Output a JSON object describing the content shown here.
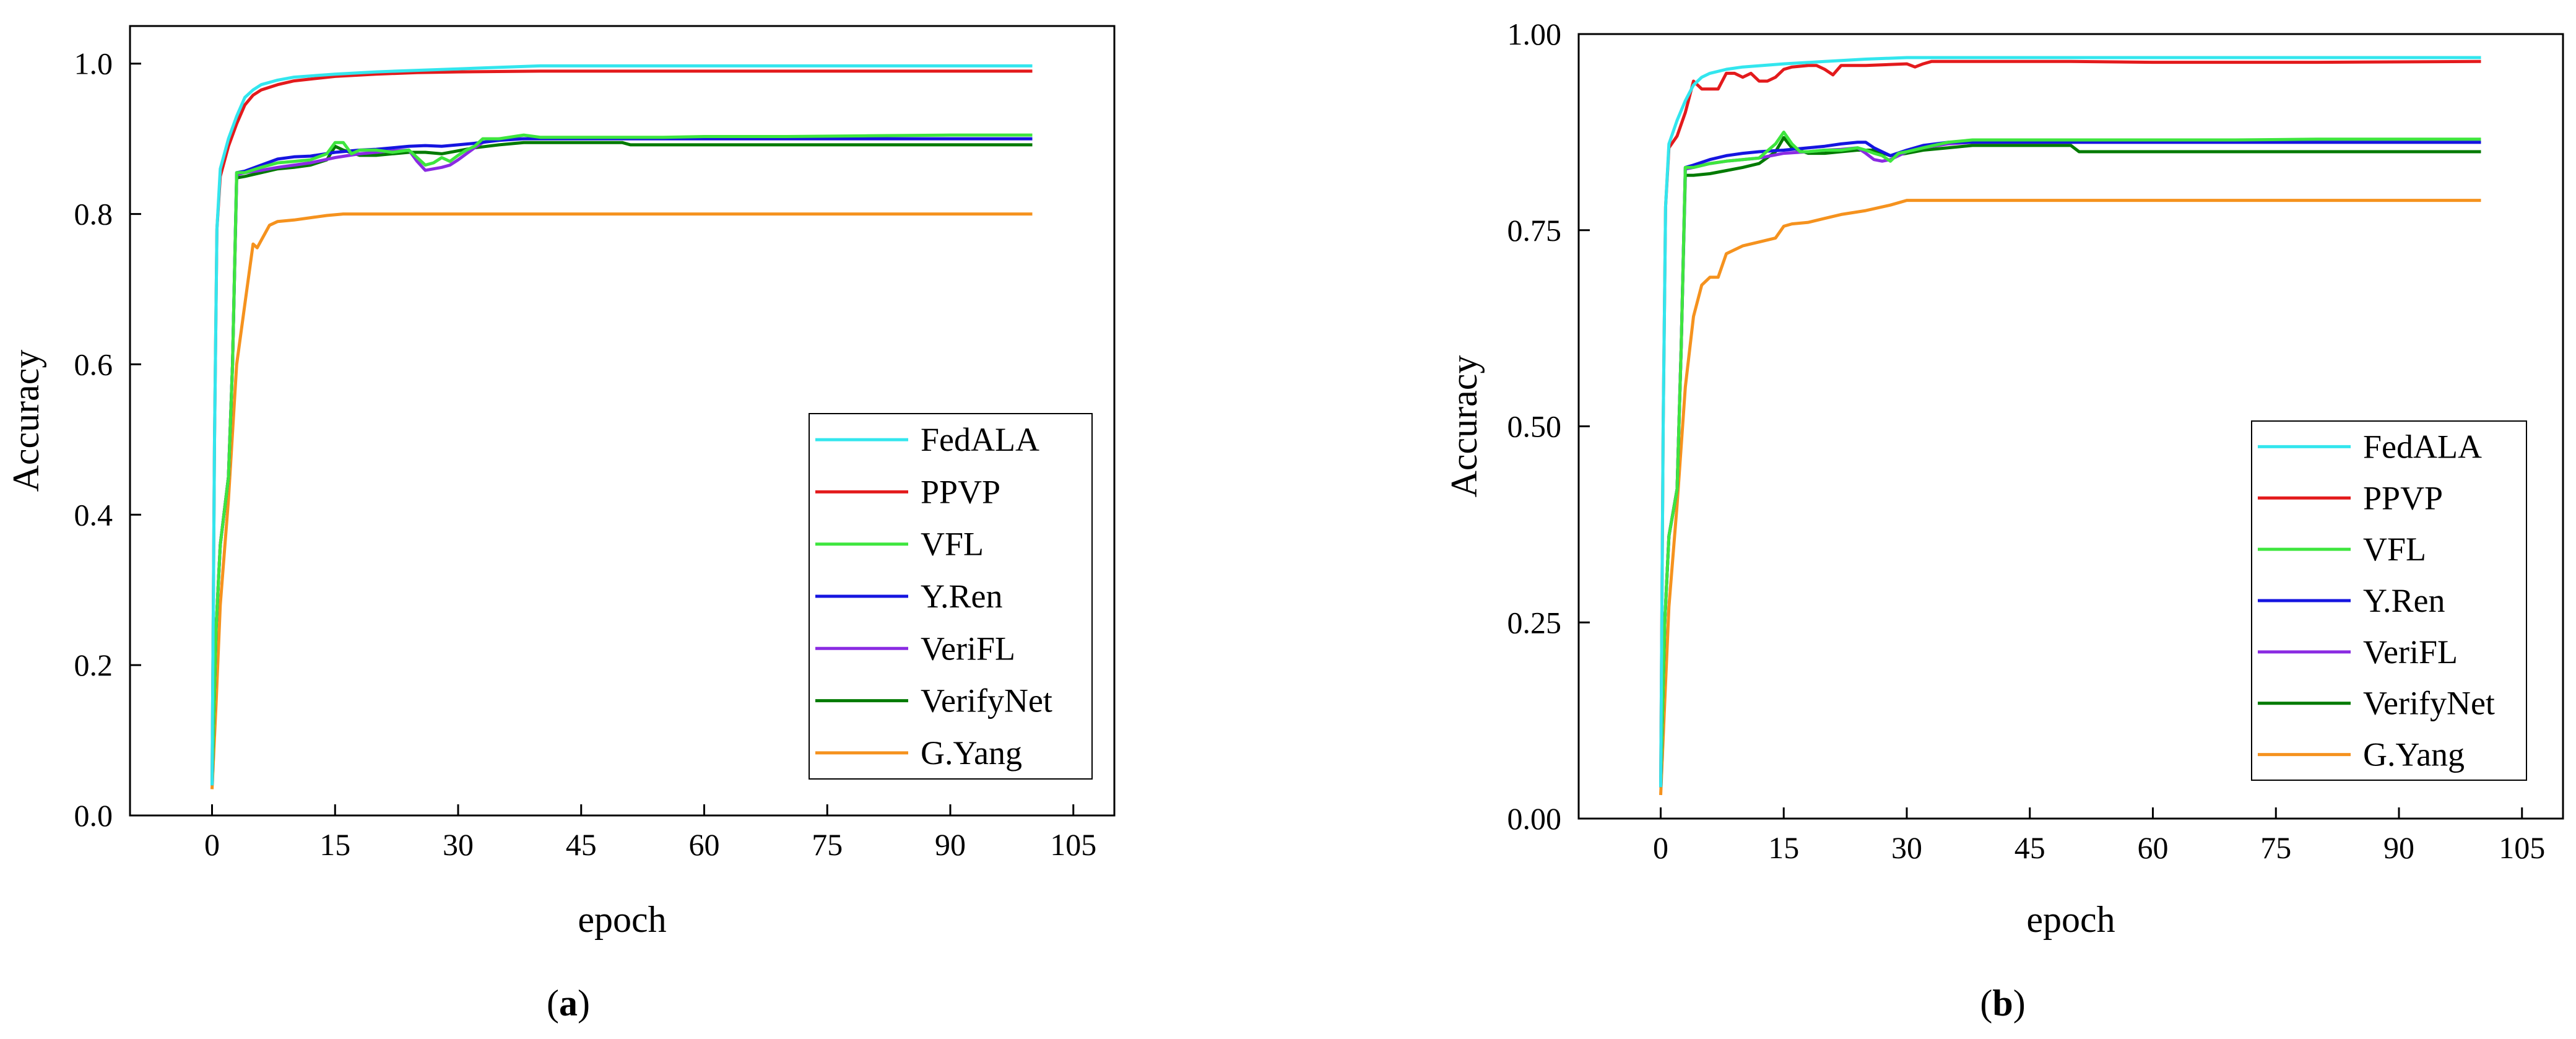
{
  "colors": {
    "FedALA": "#33e6ee",
    "PPVP": "#e31a1c",
    "VFL": "#3ee63e",
    "Y.Ren": "#1515e0",
    "VeriFL": "#8a2be2",
    "VerifyNet": "#007a00",
    "G.Yang": "#f5921e"
  },
  "chart_data": [
    {
      "type": "line",
      "panel_label": "a",
      "title": "",
      "xlabel": "epoch",
      "ylabel": "Accuracy",
      "xlim": [
        -10,
        110
      ],
      "ylim": [
        0,
        1.05
      ],
      "xticks": [
        0,
        15,
        30,
        45,
        60,
        75,
        90,
        105
      ],
      "yticks": [
        0.0,
        0.2,
        0.4,
        0.6,
        0.8,
        1.0
      ],
      "ytick_labels": [
        "0.0",
        "0.2",
        "0.4",
        "0.6",
        "0.8",
        "1.0"
      ],
      "legend": "bottom-right",
      "series": [
        {
          "name": "FedALA",
          "x": [
            0,
            0.3,
            0.6,
            1,
            2,
            3,
            4,
            5,
            6,
            8,
            10,
            15,
            20,
            25,
            30,
            35,
            40,
            60,
            80,
            100
          ],
          "y": [
            0.04,
            0.5,
            0.78,
            0.86,
            0.9,
            0.93,
            0.955,
            0.965,
            0.972,
            0.978,
            0.982,
            0.986,
            0.989,
            0.991,
            0.993,
            0.995,
            0.997,
            0.997,
            0.997,
            0.997
          ]
        },
        {
          "name": "PPVP",
          "x": [
            0,
            0.3,
            0.6,
            1,
            2,
            3,
            4,
            5,
            6,
            8,
            10,
            15,
            20,
            25,
            30,
            40,
            60,
            80,
            100
          ],
          "y": [
            0.04,
            0.5,
            0.78,
            0.85,
            0.89,
            0.92,
            0.945,
            0.958,
            0.965,
            0.972,
            0.977,
            0.983,
            0.986,
            0.988,
            0.989,
            0.99,
            0.99,
            0.99,
            0.99
          ]
        },
        {
          "name": "VFL",
          "x": [
            0,
            0.5,
            1,
            2,
            2.5,
            3,
            4,
            6,
            8,
            10,
            12,
            14,
            15,
            16,
            17,
            18,
            20,
            22,
            24,
            25,
            26,
            27,
            28,
            29,
            30,
            31,
            32,
            33,
            35,
            38,
            40,
            45,
            50,
            55,
            60,
            70,
            80,
            90,
            100
          ],
          "y": [
            0.04,
            0.25,
            0.36,
            0.45,
            0.6,
            0.855,
            0.855,
            0.862,
            0.868,
            0.87,
            0.872,
            0.88,
            0.895,
            0.895,
            0.88,
            0.885,
            0.885,
            0.882,
            0.885,
            0.875,
            0.865,
            0.868,
            0.875,
            0.87,
            0.878,
            0.885,
            0.89,
            0.9,
            0.9,
            0.905,
            0.902,
            0.902,
            0.902,
            0.902,
            0.903,
            0.903,
            0.904,
            0.905,
            0.905
          ]
        },
        {
          "name": "Y.Ren",
          "x": [
            0,
            0.5,
            1,
            2,
            2.5,
            3,
            4,
            6,
            8,
            10,
            12,
            15,
            18,
            20,
            22,
            24,
            26,
            28,
            30,
            32,
            35,
            38,
            40,
            50,
            60,
            70,
            80,
            90,
            100
          ],
          "y": [
            0.04,
            0.25,
            0.36,
            0.45,
            0.6,
            0.855,
            0.857,
            0.865,
            0.873,
            0.876,
            0.877,
            0.882,
            0.885,
            0.886,
            0.888,
            0.89,
            0.891,
            0.89,
            0.892,
            0.894,
            0.898,
            0.9,
            0.9,
            0.9,
            0.9,
            0.9,
            0.9,
            0.9,
            0.9
          ]
        },
        {
          "name": "VeriFL",
          "x": [
            0,
            0.5,
            1,
            2,
            2.5,
            3,
            4,
            6,
            8,
            10,
            12,
            15,
            18,
            20,
            22,
            24,
            25,
            26,
            27,
            28,
            29,
            30,
            31,
            32,
            33,
            35,
            38,
            40,
            50,
            60,
            70,
            80,
            90,
            100
          ],
          "y": [
            0.04,
            0.25,
            0.36,
            0.45,
            0.6,
            0.852,
            0.855,
            0.858,
            0.862,
            0.865,
            0.868,
            0.875,
            0.88,
            0.882,
            0.884,
            0.885,
            0.87,
            0.858,
            0.86,
            0.862,
            0.865,
            0.872,
            0.88,
            0.888,
            0.895,
            0.9,
            0.9,
            0.9,
            0.9,
            0.9,
            0.9,
            0.9,
            0.9,
            0.9
          ]
        },
        {
          "name": "VerifyNet",
          "x": [
            0,
            0.5,
            1,
            2,
            2.5,
            3,
            4,
            6,
            8,
            10,
            12,
            14,
            15,
            16,
            18,
            20,
            22,
            24,
            26,
            28,
            30,
            32,
            35,
            38,
            40,
            45,
            50,
            51,
            60,
            70,
            80,
            90,
            100
          ],
          "y": [
            0.04,
            0.25,
            0.36,
            0.45,
            0.6,
            0.848,
            0.85,
            0.855,
            0.86,
            0.862,
            0.865,
            0.872,
            0.89,
            0.885,
            0.878,
            0.878,
            0.88,
            0.882,
            0.882,
            0.88,
            0.884,
            0.888,
            0.892,
            0.895,
            0.895,
            0.895,
            0.895,
            0.892,
            0.892,
            0.892,
            0.892,
            0.892,
            0.892
          ]
        },
        {
          "name": "G.Yang",
          "x": [
            0,
            0.5,
            1,
            2,
            3,
            4,
            5,
            5.5,
            6,
            7,
            8,
            10,
            12,
            14,
            16,
            18,
            20,
            25,
            30,
            40,
            50,
            60,
            70,
            80,
            90,
            100
          ],
          "y": [
            0.035,
            0.15,
            0.28,
            0.42,
            0.6,
            0.68,
            0.76,
            0.755,
            0.765,
            0.785,
            0.79,
            0.792,
            0.795,
            0.798,
            0.8,
            0.8,
            0.8,
            0.8,
            0.8,
            0.8,
            0.8,
            0.8,
            0.8,
            0.8,
            0.8,
            0.8
          ]
        }
      ]
    },
    {
      "type": "line",
      "panel_label": "b",
      "title": "",
      "xlabel": "epoch",
      "ylabel": "Accuracy",
      "xlim": [
        -10,
        110
      ],
      "ylim": [
        0,
        1.0
      ],
      "xticks": [
        0,
        15,
        30,
        45,
        60,
        75,
        90,
        105
      ],
      "yticks": [
        0.0,
        0.25,
        0.5,
        0.75,
        1.0
      ],
      "ytick_labels": [
        "0.00",
        "0.25",
        "0.50",
        "0.75",
        "1.00"
      ],
      "legend": "bottom-right",
      "series": [
        {
          "name": "FedALA",
          "x": [
            0,
            0.3,
            0.6,
            1,
            2,
            3,
            4,
            5,
            6,
            8,
            10,
            15,
            20,
            25,
            30,
            40,
            60,
            80,
            100
          ],
          "y": [
            0.04,
            0.5,
            0.78,
            0.86,
            0.89,
            0.915,
            0.935,
            0.945,
            0.95,
            0.955,
            0.958,
            0.962,
            0.965,
            0.968,
            0.97,
            0.97,
            0.97,
            0.97,
            0.97
          ]
        },
        {
          "name": "PPVP",
          "x": [
            0,
            0.3,
            0.6,
            1,
            2,
            3,
            4,
            5,
            6,
            7,
            8,
            9,
            10,
            11,
            12,
            13,
            14,
            15,
            16,
            18,
            19,
            20,
            21,
            22,
            25,
            30,
            31,
            32,
            33,
            35,
            40,
            50,
            60,
            80,
            100
          ],
          "y": [
            0.04,
            0.5,
            0.78,
            0.855,
            0.87,
            0.9,
            0.94,
            0.93,
            0.93,
            0.93,
            0.95,
            0.95,
            0.945,
            0.95,
            0.94,
            0.94,
            0.945,
            0.955,
            0.958,
            0.96,
            0.96,
            0.955,
            0.948,
            0.96,
            0.96,
            0.962,
            0.958,
            0.962,
            0.965,
            0.965,
            0.965,
            0.965,
            0.964,
            0.964,
            0.965
          ]
        },
        {
          "name": "VFL",
          "x": [
            0,
            0.5,
            1,
            2,
            2.5,
            3,
            4,
            6,
            8,
            10,
            12,
            14,
            15,
            16,
            17,
            18,
            20,
            22,
            24,
            25,
            26,
            27,
            28,
            29,
            30,
            32,
            35,
            38,
            40,
            50,
            60,
            70,
            80,
            90,
            100
          ],
          "y": [
            0.04,
            0.25,
            0.36,
            0.42,
            0.6,
            0.83,
            0.83,
            0.835,
            0.838,
            0.84,
            0.842,
            0.86,
            0.875,
            0.86,
            0.85,
            0.85,
            0.852,
            0.852,
            0.855,
            0.852,
            0.848,
            0.845,
            0.838,
            0.848,
            0.85,
            0.855,
            0.862,
            0.865,
            0.865,
            0.865,
            0.865,
            0.865,
            0.866,
            0.866,
            0.866
          ]
        },
        {
          "name": "Y.Ren",
          "x": [
            0,
            0.5,
            1,
            2,
            2.5,
            3,
            4,
            6,
            8,
            10,
            12,
            15,
            18,
            20,
            22,
            24,
            25,
            26,
            28,
            30,
            32,
            35,
            38,
            40,
            50,
            60,
            70,
            80,
            90,
            100
          ],
          "y": [
            0.04,
            0.25,
            0.36,
            0.42,
            0.6,
            0.83,
            0.833,
            0.84,
            0.845,
            0.848,
            0.85,
            0.852,
            0.855,
            0.857,
            0.86,
            0.862,
            0.862,
            0.855,
            0.845,
            0.852,
            0.858,
            0.862,
            0.862,
            0.862,
            0.862,
            0.862,
            0.862,
            0.862,
            0.862,
            0.862
          ]
        },
        {
          "name": "VeriFL",
          "x": [
            0,
            0.5,
            1,
            2,
            2.5,
            3,
            4,
            6,
            8,
            10,
            12,
            15,
            18,
            20,
            22,
            24,
            25,
            26,
            27,
            28,
            29,
            30,
            32,
            35,
            38,
            40,
            50,
            60,
            70,
            80,
            90,
            100
          ],
          "y": [
            0.04,
            0.25,
            0.36,
            0.42,
            0.6,
            0.828,
            0.83,
            0.835,
            0.838,
            0.84,
            0.842,
            0.848,
            0.85,
            0.852,
            0.853,
            0.855,
            0.848,
            0.84,
            0.838,
            0.84,
            0.845,
            0.85,
            0.855,
            0.86,
            0.862,
            0.862,
            0.862,
            0.862,
            0.862,
            0.862,
            0.862,
            0.862
          ]
        },
        {
          "name": "VerifyNet",
          "x": [
            0,
            0.5,
            1,
            2,
            2.5,
            3,
            4,
            6,
            8,
            10,
            12,
            14,
            15,
            16,
            18,
            20,
            22,
            24,
            26,
            28,
            30,
            32,
            35,
            38,
            40,
            45,
            50,
            51,
            60,
            70,
            80,
            90,
            100
          ],
          "y": [
            0.04,
            0.25,
            0.36,
            0.42,
            0.6,
            0.82,
            0.82,
            0.822,
            0.826,
            0.83,
            0.835,
            0.85,
            0.868,
            0.855,
            0.848,
            0.848,
            0.85,
            0.852,
            0.852,
            0.845,
            0.848,
            0.852,
            0.855,
            0.858,
            0.858,
            0.858,
            0.858,
            0.85,
            0.85,
            0.85,
            0.85,
            0.85,
            0.85
          ]
        },
        {
          "name": "G.Yang",
          "x": [
            0,
            0.5,
            1,
            2,
            3,
            4,
            5,
            6,
            7,
            8,
            9,
            10,
            12,
            14,
            15,
            16,
            18,
            20,
            22,
            25,
            28,
            30,
            35,
            40,
            50,
            60,
            70,
            80,
            90,
            100
          ],
          "y": [
            0.03,
            0.15,
            0.27,
            0.4,
            0.55,
            0.64,
            0.68,
            0.69,
            0.69,
            0.72,
            0.725,
            0.73,
            0.735,
            0.74,
            0.755,
            0.758,
            0.76,
            0.765,
            0.77,
            0.775,
            0.782,
            0.788,
            0.788,
            0.788,
            0.788,
            0.788,
            0.788,
            0.788,
            0.788,
            0.788
          ]
        }
      ]
    }
  ]
}
